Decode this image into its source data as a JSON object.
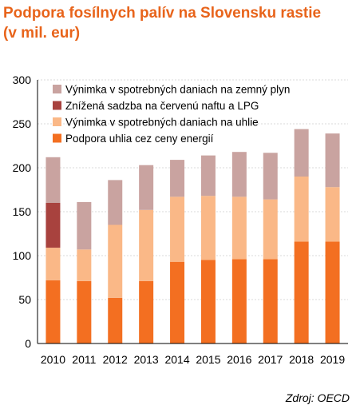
{
  "title_line1": "Podpora fosílnych palív na Slovensku rastie",
  "title_line2": "(v mil. eur)",
  "source": "Zdroj: OECD",
  "chart_data": {
    "type": "bar",
    "stacked": true,
    "categories": [
      "2010",
      "2011",
      "2012",
      "2013",
      "2014",
      "2015",
      "2016",
      "2017",
      "2018",
      "2019"
    ],
    "ylim": [
      0,
      300
    ],
    "yticks": [
      0,
      50,
      100,
      150,
      200,
      250,
      300
    ],
    "grid": true,
    "legend_position": "top-left",
    "series": [
      {
        "name": "Podpora uhlia cez ceny energií",
        "color": "#f36f21",
        "values": [
          72,
          71,
          52,
          71,
          93,
          95,
          96,
          96,
          116,
          116
        ]
      },
      {
        "name": "Výnimka v spotrebných daniach na uhlie",
        "color": "#fab887",
        "values": [
          37,
          36,
          83,
          81,
          74,
          73,
          71,
          68,
          74,
          62
        ]
      },
      {
        "name": "Znížená sadzba na červenú naftu a LPG",
        "color": "#a8423e",
        "values": [
          51,
          0,
          0,
          0,
          0,
          0,
          0,
          0,
          0,
          0
        ]
      },
      {
        "name": "Výnimka v spotrebných daniach na zemný plyn",
        "color": "#c9a3a0",
        "values": [
          52,
          54,
          51,
          51,
          42,
          46,
          51,
          53,
          54,
          61
        ]
      }
    ],
    "legend_order": [
      3,
      2,
      1,
      0
    ]
  }
}
